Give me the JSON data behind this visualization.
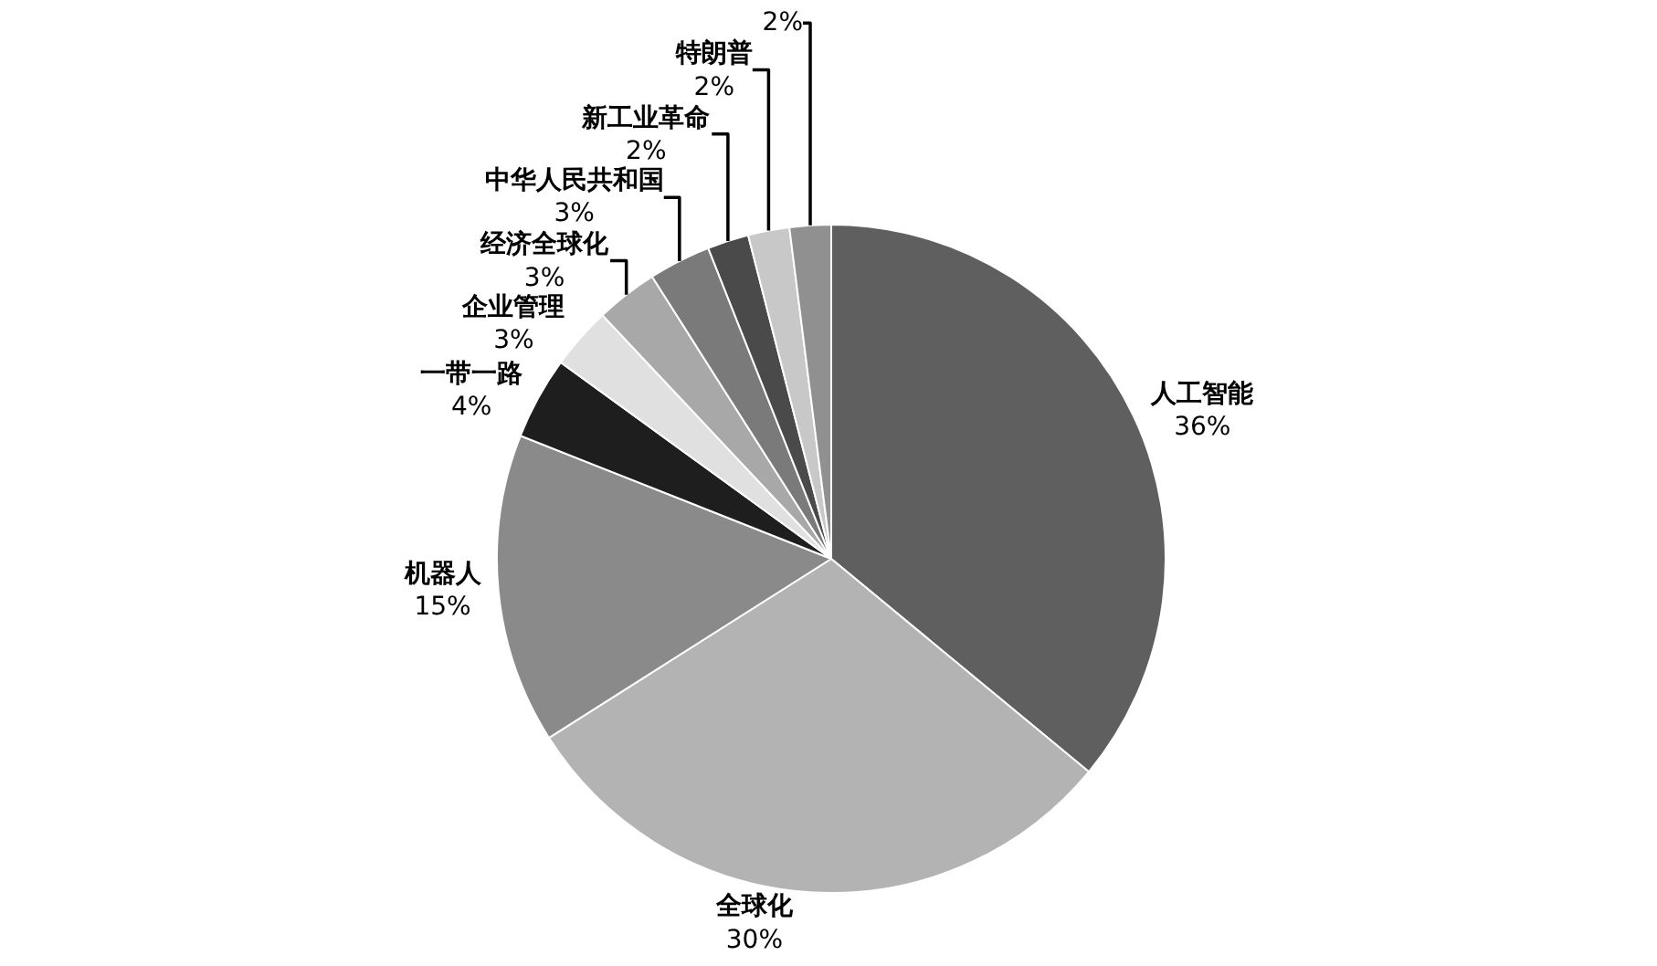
{
  "chart_data": {
    "type": "pie",
    "categories": [
      "人工智能",
      "全球化",
      "机器人",
      "一带一路",
      "企业管理",
      "经济全球化",
      "中华人民共和国",
      "新工业革命",
      "特朗普",
      null
    ],
    "values": [
      36,
      30,
      15,
      4,
      3,
      3,
      3,
      2,
      2,
      2
    ],
    "value_labels": [
      "36%",
      "30%",
      "15%",
      "4%",
      "3%",
      "3%",
      "3%",
      "2%",
      "2%",
      "2%"
    ],
    "colors": [
      "#5f5f5f",
      "#b3b3b3",
      "#8a8a8a",
      "#1e1e1e",
      "#e0e0e0",
      "#a8a8a8",
      "#7a7a7a",
      "#4a4a4a",
      "#c8c8c8",
      "#909090"
    ],
    "legend": false
  }
}
